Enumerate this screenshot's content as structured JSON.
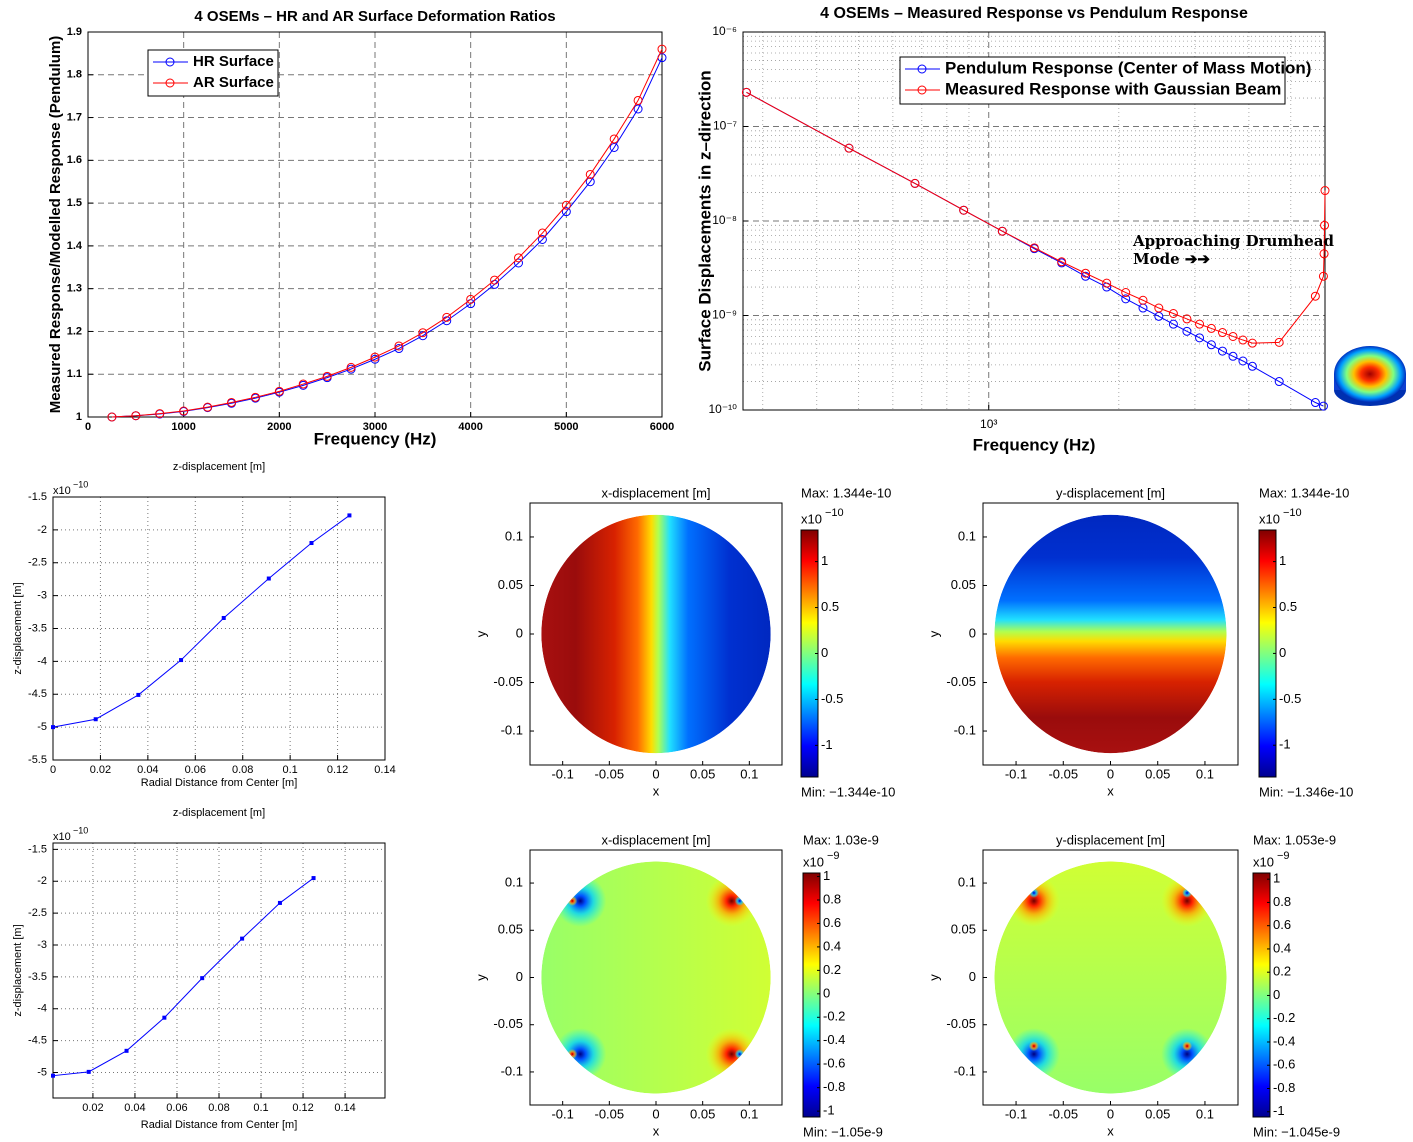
{
  "chart_data": [
    {
      "type": "line",
      "title": "4 OSEMs – HR and AR Surface Deformation Ratios",
      "x_label": "Frequency (Hz)",
      "y_label": "Measured Response/Modelled Response (Pendulum)",
      "x": [
        250,
        500,
        750,
        1000,
        1250,
        1500,
        1750,
        2000,
        2250,
        2500,
        2750,
        3000,
        3250,
        3500,
        3750,
        4000,
        4250,
        4500,
        4750,
        5000,
        5250,
        5500,
        5750,
        6000
      ],
      "series": [
        {
          "name": "HR Surface",
          "color": "#0000ff",
          "values": [
            1.0,
            1.003,
            1.007,
            1.013,
            1.022,
            1.032,
            1.044,
            1.058,
            1.074,
            1.092,
            1.112,
            1.135,
            1.16,
            1.19,
            1.225,
            1.265,
            1.31,
            1.36,
            1.415,
            1.48,
            1.55,
            1.63,
            1.72,
            1.84
          ]
        },
        {
          "name": "AR Surface",
          "color": "#ff0000",
          "values": [
            1.0,
            1.003,
            1.008,
            1.014,
            1.023,
            1.034,
            1.046,
            1.06,
            1.077,
            1.095,
            1.116,
            1.14,
            1.166,
            1.197,
            1.233,
            1.275,
            1.32,
            1.372,
            1.43,
            1.495,
            1.567,
            1.65,
            1.74,
            1.86
          ]
        }
      ],
      "xlim": [
        0,
        6000
      ],
      "ylim": [
        1,
        1.9
      ],
      "xticks": [
        0,
        1000,
        2000,
        3000,
        4000,
        5000,
        6000
      ],
      "yticks": [
        1,
        1.1,
        1.2,
        1.3,
        1.4,
        1.5,
        1.6,
        1.7,
        1.8,
        1.9
      ],
      "grid": true,
      "legend": "upper left"
    },
    {
      "type": "line",
      "title": "4 OSEMs – Measured Response vs Pendulum Response",
      "x_label": "Frequency (Hz)",
      "y_label": "Surface Displacements in z–direction",
      "x_log": true,
      "y_log": true,
      "series": [
        {
          "name": "Pendulum Response (Center of Mass Motion)",
          "color": "#0000ff",
          "x": [
            275,
            475,
            675,
            875,
            1075,
            1275,
            1475,
            1675,
            1875,
            2075,
            2275,
            2475,
            2675,
            2875,
            3075,
            3275,
            3475,
            3675,
            3875,
            4075,
            4700,
            5700,
            5950
          ],
          "values": [
            2.3e-07,
            5.9e-08,
            2.5e-08,
            1.3e-08,
            7.8e-09,
            5.1e-09,
            3.6e-09,
            2.6e-09,
            2e-09,
            1.5e-09,
            1.2e-09,
            9.8e-10,
            8.1e-10,
            6.8e-10,
            5.8e-10,
            4.9e-10,
            4.2e-10,
            3.7e-10,
            3.3e-10,
            2.9e-10,
            2e-10,
            1.2e-10,
            1.1e-10
          ]
        },
        {
          "name": "Measured Response with Gaussian Beam",
          "color": "#ff0000",
          "x": [
            275,
            475,
            675,
            875,
            1075,
            1275,
            1475,
            1675,
            1875,
            2075,
            2275,
            2475,
            2675,
            2875,
            3075,
            3275,
            3475,
            3675,
            3875,
            4075,
            4700,
            5700,
            5950,
            5970,
            5985,
            6000
          ],
          "values": [
            2.3e-07,
            5.9e-08,
            2.5e-08,
            1.3e-08,
            7.8e-09,
            5.2e-09,
            3.7e-09,
            2.8e-09,
            2.2e-09,
            1.75e-09,
            1.45e-09,
            1.2e-09,
            1.05e-09,
            9.2e-10,
            8.1e-10,
            7.3e-10,
            6.6e-10,
            6e-10,
            5.5e-10,
            5.1e-10,
            5.2e-10,
            1.6e-09,
            2.6e-09,
            4.5e-09,
            9e-09,
            2.1e-08
          ]
        }
      ],
      "xlim": [
        270,
        6000
      ],
      "ylim": [
        1e-10,
        1e-06
      ],
      "xticks": [
        {
          "value": 1000,
          "label": "10³"
        }
      ],
      "yticks": [
        {
          "value": 1e-10,
          "label": "10⁻¹⁰"
        },
        {
          "value": 1e-09,
          "label": "10⁻⁹"
        },
        {
          "value": 1e-08,
          "label": "10⁻⁸"
        },
        {
          "value": 1e-07,
          "label": "10⁻⁷"
        },
        {
          "value": 1e-06,
          "label": "10⁻⁶"
        }
      ],
      "grid": true,
      "minor_grid": true,
      "legend": "upper center",
      "annotation": [
        "Approaching Drumhead",
        "Mode ➔➔"
      ]
    },
    {
      "type": "line",
      "title": "z-displacement [m]",
      "x_label": "Radial Distance from Center [m]",
      "y_label": "z-displacement [m]",
      "y_exponent": {
        "base": "x10",
        "power": "−10"
      },
      "x": [
        0,
        0.018,
        0.036,
        0.054,
        0.072,
        0.091,
        0.109,
        0.125
      ],
      "values": [
        -5,
        -4.88,
        -4.51,
        -3.98,
        -3.34,
        -2.74,
        -2.2,
        -1.78
      ],
      "color": "#0000ff",
      "xlim": [
        0,
        0.14
      ],
      "ylim": [
        -5.5,
        -1.5
      ],
      "xticks": [
        0,
        0.02,
        0.04,
        0.06,
        0.08,
        0.1,
        0.12,
        0.14
      ],
      "yticks": [
        -5.5,
        -5,
        -4.5,
        -4,
        -3.5,
        -3,
        -2.5,
        -2,
        -1.5
      ],
      "grid": true
    },
    {
      "type": "line",
      "title": "z-displacement [m]",
      "x_label": "Radial Distance from Center [m]",
      "y_label": "z-displacement [m]",
      "y_exponent": {
        "base": "x10",
        "power": "−10"
      },
      "x": [
        0.001,
        0.018,
        0.036,
        0.054,
        0.072,
        0.091,
        0.109,
        0.125
      ],
      "values": [
        -5.05,
        -4.99,
        -4.66,
        -4.14,
        -3.52,
        -2.9,
        -2.34,
        -1.95
      ],
      "color": "#0000ff",
      "xlim": [
        0.001,
        0.159
      ],
      "ylim": [
        -5.4,
        -1.4
      ],
      "xticks": [
        0.02,
        0.04,
        0.06,
        0.08,
        0.1,
        0.12,
        0.14
      ],
      "yticks": [
        -5,
        -4.5,
        -4,
        -3.5,
        -3,
        -2.5,
        -2,
        -1.5
      ],
      "grid": true
    },
    {
      "type": "heatmap",
      "title": "x-displacement [m]",
      "x_label": "x",
      "y_label": "y",
      "xlim": [
        -0.135,
        0.135
      ],
      "ylim": [
        -0.135,
        0.135
      ],
      "xticks": [
        -0.1,
        -0.05,
        0,
        0.05,
        0.1
      ],
      "yticks": [
        -0.1,
        -0.05,
        0,
        0.05,
        0.1
      ],
      "clim": [
        -1.344,
        1.344
      ],
      "cticks": [
        -1,
        -0.5,
        0,
        0.5,
        1
      ],
      "colorbar_exponent": {
        "base": "x10",
        "power": "−10"
      },
      "max_label": "Max: 1.344e-10",
      "min_label": "Min: −1.344e-10"
    },
    {
      "type": "heatmap",
      "title": "y-displacement [m]",
      "x_label": "x",
      "y_label": "y",
      "xlim": [
        -0.135,
        0.135
      ],
      "ylim": [
        -0.135,
        0.135
      ],
      "xticks": [
        -0.1,
        -0.05,
        0,
        0.05,
        0.1
      ],
      "yticks": [
        -0.1,
        -0.05,
        0,
        0.05,
        0.1
      ],
      "clim": [
        -1.346,
        1.344
      ],
      "cticks": [
        -1,
        -0.5,
        0,
        0.5,
        1
      ],
      "colorbar_exponent": {
        "base": "x10",
        "power": "−10"
      },
      "max_label": "Max: 1.344e-10",
      "min_label": "Min: −1.346e-10"
    },
    {
      "type": "heatmap",
      "title": "x-displacement [m]",
      "x_label": "x",
      "y_label": "y",
      "xlim": [
        -0.135,
        0.135
      ],
      "ylim": [
        -0.135,
        0.135
      ],
      "xticks": [
        -0.1,
        -0.05,
        0,
        0.05,
        0.1
      ],
      "yticks": [
        -0.1,
        -0.05,
        0,
        0.05,
        0.1
      ],
      "clim": [
        -1.05,
        1.03
      ],
      "cticks": [
        -1,
        -0.8,
        -0.6,
        -0.4,
        -0.2,
        0,
        0.2,
        0.4,
        0.6,
        0.8,
        1
      ],
      "colorbar_exponent": {
        "base": "x10",
        "power": "−9"
      },
      "max_label": "Max: 1.03e-9",
      "min_label": "Min: −1.05e-9"
    },
    {
      "type": "heatmap",
      "title": "y-displacement [m]",
      "x_label": "x",
      "y_label": "y",
      "xlim": [
        -0.135,
        0.135
      ],
      "ylim": [
        -0.135,
        0.135
      ],
      "xticks": [
        -0.1,
        -0.05,
        0,
        0.05,
        0.1
      ],
      "yticks": [
        -0.1,
        -0.05,
        0,
        0.05,
        0.1
      ],
      "clim": [
        -1.045,
        1.053
      ],
      "cticks": [
        -1,
        -0.8,
        -0.6,
        -0.4,
        -0.2,
        0,
        0.2,
        0.4,
        0.6,
        0.8,
        1
      ],
      "colorbar_exponent": {
        "base": "x10",
        "power": "−9"
      },
      "max_label": "Max: 1.053e-9",
      "min_label": "Min: −1.045e-9"
    }
  ]
}
